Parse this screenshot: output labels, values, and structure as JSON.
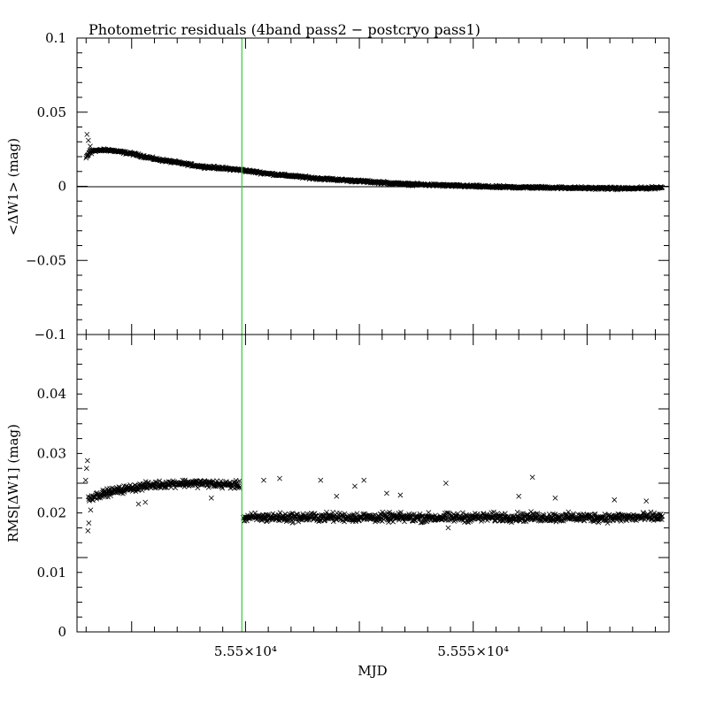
{
  "chart_data": [
    {
      "type": "scatter",
      "title": "Photometric residuals (4band pass2 − postcryo pass1)",
      "xlabel": "",
      "ylabel": "<ΔW1> (mag)",
      "xlim": [
        55463,
        55593
      ],
      "ylim": [
        -0.1,
        0.1
      ],
      "yticks": [
        "0.1",
        "0.05",
        "0",
        "−0.05",
        "−0.1"
      ],
      "yticks_values": [
        0.1,
        0.05,
        0,
        -0.05,
        -0.1
      ],
      "zero_line": 0,
      "vertical_line_x": 55499.2,
      "vertical_line_color": "#33cc33",
      "marker": "x",
      "marker_color": "#000000",
      "series": [
        {
          "curve": [
            [
              55465.0,
              0.019
            ],
            [
              55466,
              0.024
            ],
            [
              55470,
              0.0245
            ],
            [
              55475,
              0.022
            ],
            [
              55480,
              0.0185
            ],
            [
              55490,
              0.0135
            ],
            [
              55499,
              0.011
            ],
            [
              55505,
              0.0085
            ],
            [
              55515,
              0.0055
            ],
            [
              55525,
              0.0035
            ],
            [
              55535,
              0.0015
            ],
            [
              55545,
              0.0005
            ],
            [
              55555,
              -0.0005
            ],
            [
              55565,
              -0.0008
            ],
            [
              55575,
              -0.0012
            ],
            [
              55585,
              -0.0015
            ],
            [
              55591.5,
              -0.0008
            ]
          ],
          "extra_points": [
            [
              55465.2,
              0.035
            ],
            [
              55465.5,
              0.031
            ],
            [
              55465.9,
              0.027
            ],
            [
              55466.2,
              0.022
            ]
          ],
          "spread": 0.0012
        }
      ]
    },
    {
      "type": "scatter",
      "title": "",
      "xlabel": "MJD",
      "ylabel": "RMS[ΔW1] (mag)",
      "xlim": [
        55463,
        55593
      ],
      "ylim": [
        0,
        0.05
      ],
      "yticks": [
        "0.04",
        "0.03",
        "0.02",
        "0.01",
        "0"
      ],
      "yticks_values": [
        0.04,
        0.03,
        0.02,
        0.01,
        0
      ],
      "xticks": [
        "5.55×10⁴",
        "5.555×10⁴"
      ],
      "xticks_values": [
        55500,
        55550
      ],
      "vertical_line_x": 55499.2,
      "vertical_line_color": "#33cc33",
      "marker": "x",
      "marker_color": "#000000",
      "series": [
        {
          "segments": [
            {
              "curve": [
                [
                  55465.5,
                  0.0225
                ],
                [
                  55470,
                  0.0235
                ],
                [
                  55475,
                  0.0242
                ],
                [
                  55480,
                  0.0247
                ],
                [
                  55485,
                  0.025
                ],
                [
                  55490,
                  0.025
                ],
                [
                  55495,
                  0.0248
                ],
                [
                  55498.8,
                  0.0247
                ]
              ],
              "spread": 0.0009
            },
            {
              "curve": [
                [
                  55499.5,
                  0.0192
                ],
                [
                  55520,
                  0.0193
                ],
                [
                  55540,
                  0.0192
                ],
                [
                  55560,
                  0.0193
                ],
                [
                  55580,
                  0.0192
                ],
                [
                  55591.5,
                  0.0193
                ]
              ],
              "spread": 0.0011
            }
          ],
          "extra_points": [
            [
              55464.9,
              0.0255
            ],
            [
              55465.1,
              0.0275
            ],
            [
              55465.3,
              0.0288
            ],
            [
              55465.4,
              0.017
            ],
            [
              55465.6,
              0.0183
            ],
            [
              55466.0,
              0.0205
            ],
            [
              55478.0,
              0.0218
            ],
            [
              55476.5,
              0.0215
            ],
            [
              55492.5,
              0.0225
            ],
            [
              55504.0,
              0.0255
            ],
            [
              55507.5,
              0.0258
            ],
            [
              55516.5,
              0.0255
            ],
            [
              55526.0,
              0.0255
            ],
            [
              55524.0,
              0.0245
            ],
            [
              55520.0,
              0.0228
            ],
            [
              55531.0,
              0.0233
            ],
            [
              55534.0,
              0.023
            ],
            [
              55544.0,
              0.025
            ],
            [
              55544.5,
              0.0175
            ],
            [
              55560.0,
              0.0228
            ],
            [
              55563.0,
              0.026
            ],
            [
              55568.0,
              0.0225
            ],
            [
              55588.0,
              0.022
            ],
            [
              55581.0,
              0.0222
            ]
          ]
        }
      ]
    }
  ]
}
